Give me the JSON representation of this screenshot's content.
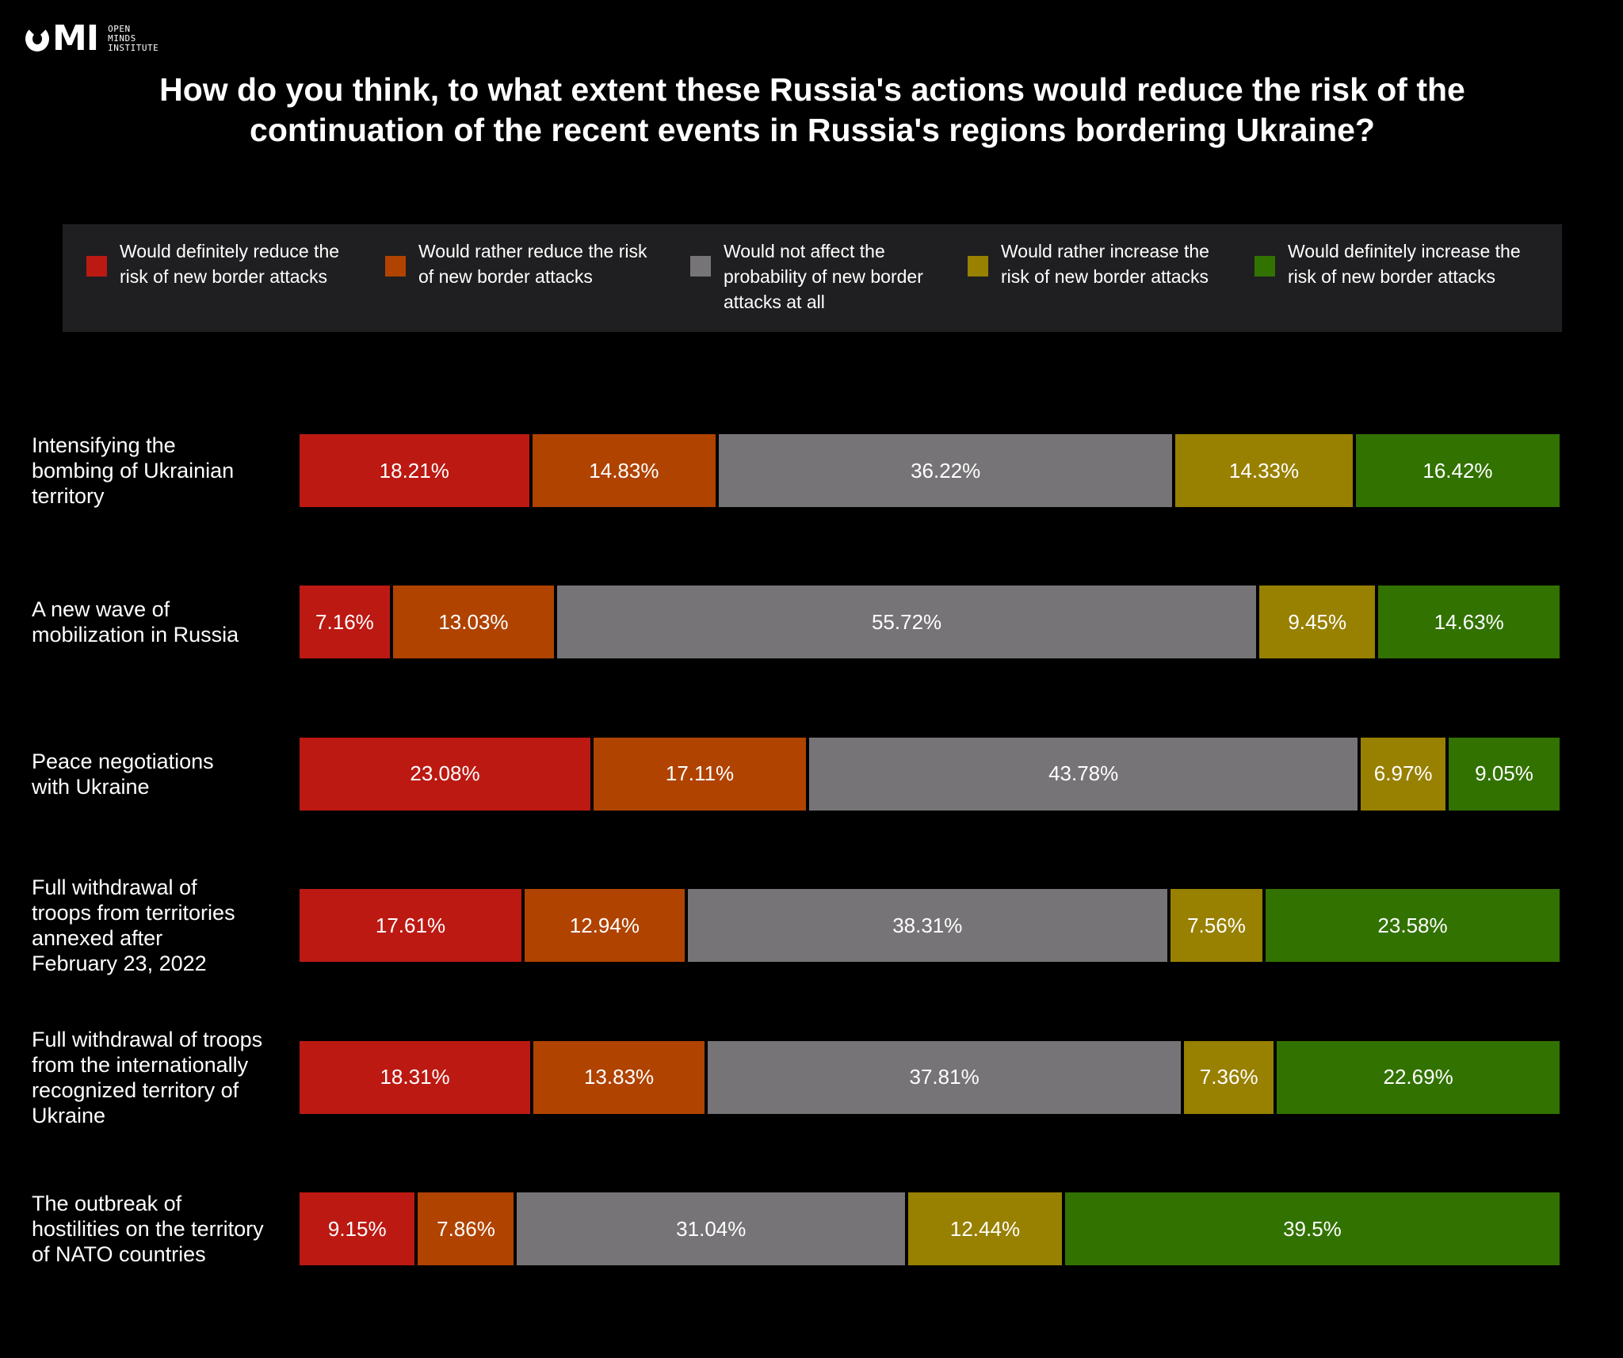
{
  "brand": {
    "logo_text": "OMI",
    "sub_lines": [
      "OPEN",
      "MINDS",
      "INSTITUTE"
    ]
  },
  "chart_data": {
    "type": "bar",
    "orientation": "horizontal",
    "stacked": "percent",
    "title": "How do you think, to what extent these Russia's actions would reduce the risk of the continuation of the recent events in Russia's regions bordering Ukraine?",
    "xlabel": "",
    "ylabel": "",
    "categories": [
      "Intensifying the bombing of Ukrainian territory",
      "A new wave of mobilization in Russia",
      "Peace negotiations with Ukraine",
      "Full withdrawal of troops from territories annexed after February 23, 2022",
      "Full withdrawal of troops from the internationally recognized territory of Ukraine",
      "The outbreak of hostilities on the territory of NATO countries"
    ],
    "category_lines": [
      [
        "Intensifying the",
        "bombing of Ukrainian",
        "territory"
      ],
      [
        "A new wave of",
        "mobilization in Russia"
      ],
      [
        "Peace negotiations",
        "with Ukraine"
      ],
      [
        "Full withdrawal of",
        "troops from territories",
        "annexed after",
        "February 23, 2022"
      ],
      [
        "Full withdrawal of troops",
        "from the internationally",
        "recognized territory of",
        "Ukraine"
      ],
      [
        "The outbreak of",
        "hostilities on the territory",
        "of NATO countries"
      ]
    ],
    "series": [
      {
        "name": "Would definitely reduce the risk of new border attacks",
        "name_lines": [
          "Would definitely reduce the",
          "risk of new border attacks"
        ],
        "color": "#bc1912",
        "values": [
          18.21,
          7.16,
          23.08,
          17.61,
          18.31,
          9.15
        ]
      },
      {
        "name": "Would rather reduce the risk of new border attacks",
        "name_lines": [
          "Would rather reduce the risk",
          "of new border attacks"
        ],
        "color": "#b04300",
        "values": [
          14.83,
          13.03,
          17.11,
          12.94,
          13.83,
          7.86
        ]
      },
      {
        "name": "Would not affect the probability of new border attacks at all",
        "name_lines": [
          "Would not affect the",
          "probability of new border",
          "attacks at all"
        ],
        "color": "#767476",
        "values": [
          36.22,
          55.72,
          43.78,
          38.31,
          37.81,
          31.04
        ]
      },
      {
        "name": "Would rather increase the risk of new border attacks",
        "name_lines": [
          "Would rather increase the",
          "risk of new border attacks"
        ],
        "color": "#988000",
        "values": [
          14.33,
          9.45,
          6.97,
          7.56,
          7.36,
          12.44
        ]
      },
      {
        "name": "Would definitely increase the risk of new border attacks",
        "name_lines": [
          "Would definitely increase the",
          "risk of new border attacks"
        ],
        "color": "#327200",
        "values": [
          16.42,
          14.63,
          9.05,
          23.58,
          22.69,
          39.5
        ]
      }
    ],
    "value_labels": [
      [
        "18.21%",
        "14.83%",
        "36.22%",
        "14.33%",
        "16.42%"
      ],
      [
        "7.16%",
        "13.03%",
        "55.72%",
        "9.45%",
        "14.63%"
      ],
      [
        "23.08%",
        "17.11%",
        "43.78%",
        "6.97%",
        "9.05%"
      ],
      [
        "17.61%",
        "12.94%",
        "38.31%",
        "7.56%",
        "23.58%"
      ],
      [
        "18.31%",
        "13.83%",
        "37.81%",
        "7.36%",
        "22.69%"
      ],
      [
        "9.15%",
        "7.86%",
        "31.04%",
        "12.44%",
        "39.5%"
      ]
    ],
    "legend_position": "top",
    "grid": false
  }
}
